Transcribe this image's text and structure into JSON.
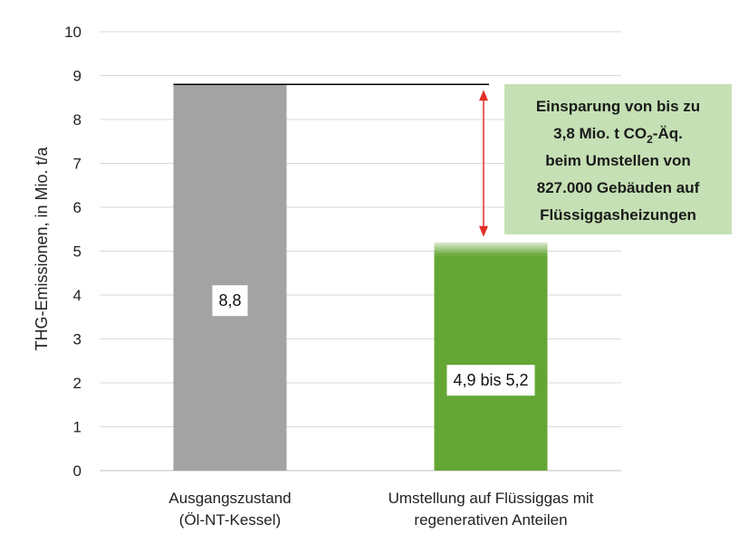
{
  "chart_data": {
    "type": "bar",
    "ylabel": "THG-Emissionen, in Mio. t/a",
    "ylim": [
      0,
      10
    ],
    "yticks": [
      0,
      1,
      2,
      3,
      4,
      5,
      6,
      7,
      8,
      9,
      10
    ],
    "grid": true,
    "categories": [
      [
        "Ausgangszustand",
        "(Öl-NT-Kessel)"
      ],
      [
        "Umstellung auf Flüssiggas mit",
        "regenerativen Anteilen"
      ]
    ],
    "bars": [
      {
        "value": 8.8,
        "range": null,
        "label": "8,8",
        "color": "#a3a3a3"
      },
      {
        "value": 5.2,
        "range": [
          4.9,
          5.2
        ],
        "label": "4,9 bis 5,2",
        "color": "#63a634"
      }
    ],
    "reference_line": {
      "value": 8.8,
      "color": "#000000"
    },
    "arrow_color": "#e0302a",
    "annotation": {
      "lines": [
        [
          "Einsparung von bis zu"
        ],
        [
          "3,8 Mio. t CO",
          "2",
          "-Äq."
        ],
        [
          "beim Umstellen von"
        ],
        [
          "827.000 Gebäuden auf"
        ],
        [
          "Flüssiggasheizungen"
        ]
      ],
      "background": "#c5e0b4"
    },
    "colors": {
      "grid": "#d9d9d9",
      "axis": "#bfbfbf"
    }
  }
}
